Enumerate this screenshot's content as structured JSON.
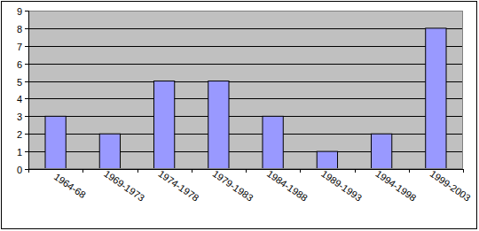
{
  "chart_data": {
    "type": "bar",
    "categories": [
      "1964-68",
      "1969-1973",
      "1974-1978",
      "1979-1983",
      "1984-1988",
      "1989-1993",
      "1994-1998",
      "1999-2003"
    ],
    "values": [
      3,
      2,
      5,
      5,
      3,
      1,
      2,
      8
    ],
    "color": "#9999ff",
    "ylim": [
      0,
      9
    ],
    "yticks": [
      0,
      1,
      2,
      3,
      4,
      5,
      6,
      7,
      8,
      9
    ],
    "grid": true
  }
}
